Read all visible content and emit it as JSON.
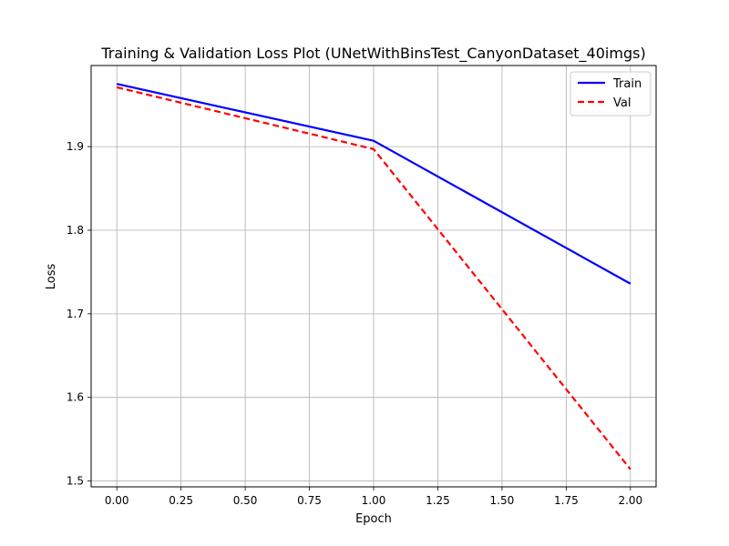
{
  "chart_data": {
    "type": "line",
    "title": "Training & Validation Loss Plot (UNetWithBinsTest_CanyonDataset_40imgs)",
    "xlabel": "Epoch",
    "ylabel": "Loss",
    "x": [
      0,
      1,
      2
    ],
    "xlim": [
      -0.1,
      2.1
    ],
    "ylim": [
      1.493,
      1.997
    ],
    "xticks": [
      0.0,
      0.25,
      0.5,
      0.75,
      1.0,
      1.25,
      1.5,
      1.75,
      2.0
    ],
    "xtick_labels": [
      "0.00",
      "0.25",
      "0.50",
      "0.75",
      "1.00",
      "1.25",
      "1.50",
      "1.75",
      "2.00"
    ],
    "yticks": [
      1.5,
      1.6,
      1.7,
      1.8,
      1.9
    ],
    "ytick_labels": [
      "1.5",
      "1.6",
      "1.7",
      "1.8",
      "1.9"
    ],
    "grid": true,
    "legend_position": "top-right",
    "series": [
      {
        "name": "Train",
        "values": [
          1.975,
          1.907,
          1.736
        ],
        "color": "#0000ff",
        "style": "solid"
      },
      {
        "name": "Val",
        "values": [
          1.971,
          1.897,
          1.514
        ],
        "color": "#ff0000",
        "style": "dashed"
      }
    ]
  }
}
